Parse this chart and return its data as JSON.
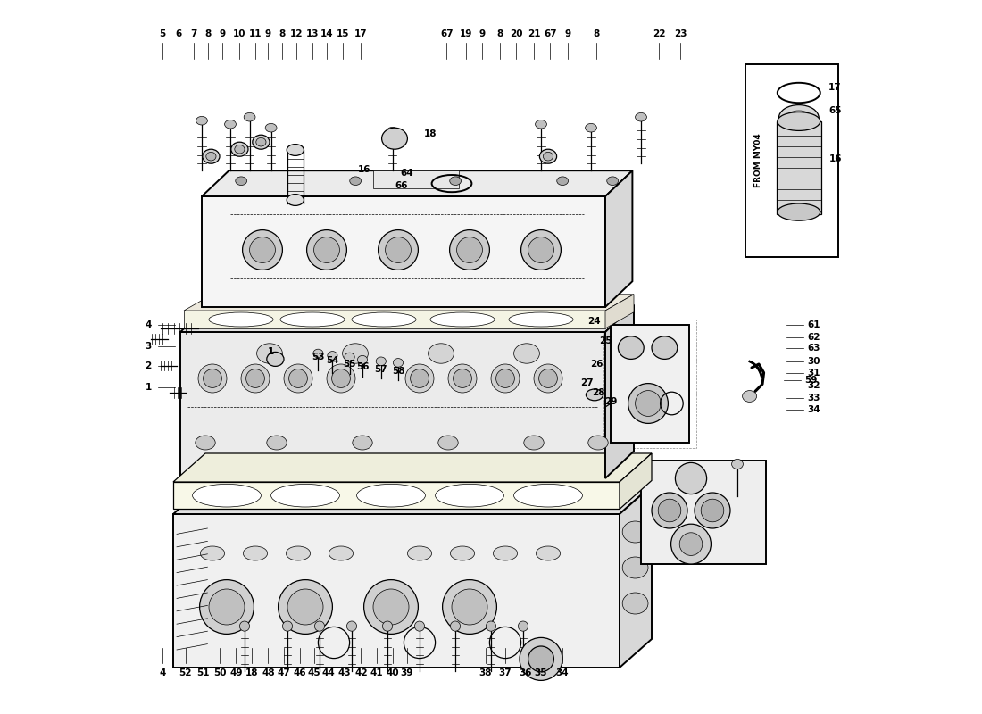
{
  "background_color": "#ffffff",
  "line_color": "#000000",
  "watermark_color": "#e8e0a0",
  "inset_label": "FROM MY04",
  "fig_width": 11.0,
  "fig_height": 8.0
}
